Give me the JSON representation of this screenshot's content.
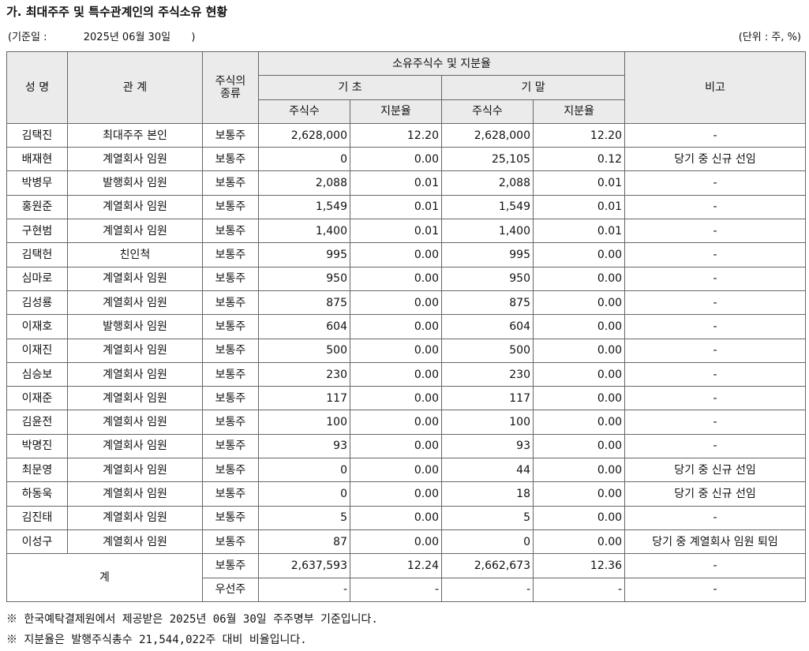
{
  "title": "가. 최대주주 및 특수관계인의 주식소유 현황",
  "base_date_label": "(기준일 :",
  "base_date_value": "2025년 06월 30일",
  "base_date_close": ")",
  "unit": "(단위 : 주, %)",
  "headers": {
    "name": "성 명",
    "relation": "관 계",
    "stock_type": "주식의\n종류",
    "owned": "소유주식수 및 지분율",
    "begin": "기 초",
    "end": "기 말",
    "shares": "주식수",
    "ratio": "지분율",
    "remark": "비고"
  },
  "rows": [
    {
      "name": "김택진",
      "relation": "최대주주 본인",
      "type": "보통주",
      "b_shares": "2,628,000",
      "b_ratio": "12.20",
      "e_shares": "2,628,000",
      "e_ratio": "12.20",
      "remark": "-"
    },
    {
      "name": "배재현",
      "relation": "계열회사 임원",
      "type": "보통주",
      "b_shares": "0",
      "b_ratio": "0.00",
      "e_shares": "25,105",
      "e_ratio": "0.12",
      "remark": "당기 중 신규 선임"
    },
    {
      "name": "박병무",
      "relation": "발행회사 임원",
      "type": "보통주",
      "b_shares": "2,088",
      "b_ratio": "0.01",
      "e_shares": "2,088",
      "e_ratio": "0.01",
      "remark": "-"
    },
    {
      "name": "홍원준",
      "relation": "계열회사 임원",
      "type": "보통주",
      "b_shares": "1,549",
      "b_ratio": "0.01",
      "e_shares": "1,549",
      "e_ratio": "0.01",
      "remark": "-"
    },
    {
      "name": "구현범",
      "relation": "계열회사 임원",
      "type": "보통주",
      "b_shares": "1,400",
      "b_ratio": "0.01",
      "e_shares": "1,400",
      "e_ratio": "0.01",
      "remark": "-"
    },
    {
      "name": "김택헌",
      "relation": "친인척",
      "type": "보통주",
      "b_shares": "995",
      "b_ratio": "0.00",
      "e_shares": "995",
      "e_ratio": "0.00",
      "remark": "-"
    },
    {
      "name": "심마로",
      "relation": "계열회사 임원",
      "type": "보통주",
      "b_shares": "950",
      "b_ratio": "0.00",
      "e_shares": "950",
      "e_ratio": "0.00",
      "remark": "-"
    },
    {
      "name": "김성룡",
      "relation": "계열회사 임원",
      "type": "보통주",
      "b_shares": "875",
      "b_ratio": "0.00",
      "e_shares": "875",
      "e_ratio": "0.00",
      "remark": "-"
    },
    {
      "name": "이재호",
      "relation": "발행회사 임원",
      "type": "보통주",
      "b_shares": "604",
      "b_ratio": "0.00",
      "e_shares": "604",
      "e_ratio": "0.00",
      "remark": "-"
    },
    {
      "name": "이재진",
      "relation": "계열회사 임원",
      "type": "보통주",
      "b_shares": "500",
      "b_ratio": "0.00",
      "e_shares": "500",
      "e_ratio": "0.00",
      "remark": "-"
    },
    {
      "name": "심승보",
      "relation": "계열회사 임원",
      "type": "보통주",
      "b_shares": "230",
      "b_ratio": "0.00",
      "e_shares": "230",
      "e_ratio": "0.00",
      "remark": "-"
    },
    {
      "name": "이재준",
      "relation": "계열회사 임원",
      "type": "보통주",
      "b_shares": "117",
      "b_ratio": "0.00",
      "e_shares": "117",
      "e_ratio": "0.00",
      "remark": "-"
    },
    {
      "name": "김윤전",
      "relation": "계열회사 임원",
      "type": "보통주",
      "b_shares": "100",
      "b_ratio": "0.00",
      "e_shares": "100",
      "e_ratio": "0.00",
      "remark": "-"
    },
    {
      "name": "박명진",
      "relation": "계열회사 임원",
      "type": "보통주",
      "b_shares": "93",
      "b_ratio": "0.00",
      "e_shares": "93",
      "e_ratio": "0.00",
      "remark": "-"
    },
    {
      "name": "최문영",
      "relation": "계열회사 임원",
      "type": "보통주",
      "b_shares": "0",
      "b_ratio": "0.00",
      "e_shares": "44",
      "e_ratio": "0.00",
      "remark": "당기 중 신규 선임"
    },
    {
      "name": "하동욱",
      "relation": "계열회사 임원",
      "type": "보통주",
      "b_shares": "0",
      "b_ratio": "0.00",
      "e_shares": "18",
      "e_ratio": "0.00",
      "remark": "당기 중 신규 선임"
    },
    {
      "name": "김진태",
      "relation": "계열회사 임원",
      "type": "보통주",
      "b_shares": "5",
      "b_ratio": "0.00",
      "e_shares": "5",
      "e_ratio": "0.00",
      "remark": "-"
    },
    {
      "name": "이성구",
      "relation": "계열회사 임원",
      "type": "보통주",
      "b_shares": "87",
      "b_ratio": "0.00",
      "e_shares": "0",
      "e_ratio": "0.00",
      "remark": "당기 중 계열회사 임원 퇴임"
    }
  ],
  "total": {
    "label": "계",
    "common": {
      "type": "보통주",
      "b_shares": "2,637,593",
      "b_ratio": "12.24",
      "e_shares": "2,662,673",
      "e_ratio": "12.36",
      "remark": "-"
    },
    "preferred": {
      "type": "우선주",
      "b_shares": "-",
      "b_ratio": "-",
      "e_shares": "-",
      "e_ratio": "-",
      "remark": "-"
    }
  },
  "notes": [
    "※ 한국예탁결제원에서 제공받은 2025년 06월 30일 주주명부 기준입니다.",
    "※ 지분율은 발행주식총수 21,544,022주 대비 비율입니다."
  ]
}
